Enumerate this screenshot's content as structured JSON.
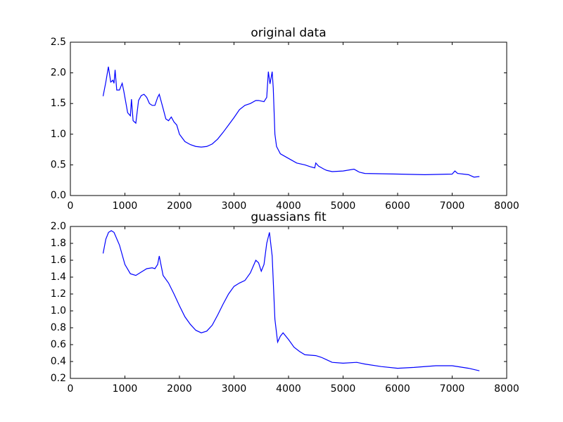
{
  "chart_data": [
    {
      "type": "line",
      "title": "original data",
      "x": [
        600,
        650,
        697,
        740,
        780,
        800,
        820,
        850,
        900,
        950,
        980,
        1050,
        1100,
        1120,
        1150,
        1200,
        1250,
        1300,
        1350,
        1400,
        1450,
        1500,
        1550,
        1600,
        1630,
        1700,
        1750,
        1800,
        1850,
        1900,
        1950,
        2000,
        2100,
        2200,
        2300,
        2400,
        2500,
        2600,
        2700,
        2800,
        2900,
        3000,
        3100,
        3200,
        3300,
        3400,
        3450,
        3550,
        3600,
        3630,
        3660,
        3700,
        3720,
        3750,
        3780,
        3850,
        3950,
        4050,
        4150,
        4300,
        4400,
        4480,
        4500,
        4550,
        4650,
        4700,
        4800,
        5000,
        5200,
        5300,
        5400,
        6000,
        6500,
        7000,
        7050,
        7100,
        7300,
        7400,
        7500
      ],
      "series": [
        {
          "color": "#0000ff",
          "values": [
            1.62,
            1.85,
            2.1,
            1.85,
            1.88,
            1.83,
            2.05,
            1.72,
            1.72,
            1.83,
            1.7,
            1.35,
            1.3,
            1.57,
            1.22,
            1.18,
            1.55,
            1.63,
            1.65,
            1.6,
            1.5,
            1.47,
            1.47,
            1.6,
            1.65,
            1.42,
            1.25,
            1.22,
            1.28,
            1.2,
            1.15,
            1.0,
            0.88,
            0.83,
            0.8,
            0.79,
            0.8,
            0.84,
            0.92,
            1.03,
            1.15,
            1.27,
            1.4,
            1.47,
            1.5,
            1.55,
            1.55,
            1.53,
            1.6,
            2.02,
            1.82,
            2.02,
            1.75,
            1.0,
            0.8,
            0.68,
            0.63,
            0.58,
            0.53,
            0.5,
            0.47,
            0.45,
            0.53,
            0.48,
            0.43,
            0.41,
            0.39,
            0.4,
            0.43,
            0.38,
            0.36,
            0.35,
            0.34,
            0.35,
            0.4,
            0.36,
            0.34,
            0.3,
            0.31
          ]
        }
      ],
      "xlim": [
        0,
        8000
      ],
      "xticks": [
        0,
        1000,
        2000,
        3000,
        4000,
        5000,
        6000,
        7000,
        8000
      ],
      "ylim": [
        0,
        2.5
      ],
      "yticks": [
        {
          "value": 0,
          "label": "0.0"
        },
        0.5,
        {
          "value": 1,
          "label": "1.0"
        },
        1.5,
        {
          "value": 2,
          "label": "2.0"
        },
        2.5
      ]
    },
    {
      "type": "line",
      "title": "guassians fit",
      "x": [
        600,
        650,
        700,
        750,
        800,
        900,
        1000,
        1100,
        1200,
        1300,
        1400,
        1500,
        1550,
        1600,
        1630,
        1660,
        1700,
        1800,
        1900,
        2000,
        2100,
        2200,
        2300,
        2400,
        2500,
        2600,
        2700,
        2800,
        2900,
        3000,
        3100,
        3200,
        3300,
        3400,
        3450,
        3500,
        3550,
        3600,
        3650,
        3700,
        3750,
        3800,
        3850,
        3900,
        4000,
        4100,
        4200,
        4300,
        4500,
        4600,
        4700,
        4800,
        5000,
        5250,
        5400,
        5700,
        6000,
        6300,
        6700,
        7000,
        7300,
        7500
      ],
      "series": [
        {
          "color": "#0000ff",
          "values": [
            1.68,
            1.85,
            1.93,
            1.95,
            1.93,
            1.78,
            1.55,
            1.44,
            1.42,
            1.46,
            1.5,
            1.51,
            1.5,
            1.55,
            1.65,
            1.55,
            1.42,
            1.33,
            1.2,
            1.06,
            0.93,
            0.84,
            0.77,
            0.74,
            0.76,
            0.83,
            0.95,
            1.08,
            1.2,
            1.29,
            1.33,
            1.36,
            1.45,
            1.6,
            1.57,
            1.47,
            1.55,
            1.8,
            1.93,
            1.65,
            0.9,
            0.63,
            0.7,
            0.74,
            0.66,
            0.57,
            0.52,
            0.48,
            0.47,
            0.45,
            0.42,
            0.39,
            0.38,
            0.39,
            0.37,
            0.34,
            0.32,
            0.33,
            0.35,
            0.35,
            0.32,
            0.29
          ]
        }
      ],
      "xlim": [
        0,
        8000
      ],
      "xticks": [
        0,
        1000,
        2000,
        3000,
        4000,
        5000,
        6000,
        7000,
        8000
      ],
      "ylim": [
        0.2,
        2.0
      ],
      "yticks": [
        0.2,
        0.4,
        0.6,
        0.8,
        {
          "value": 1,
          "label": "1.0"
        },
        1.2,
        1.4,
        1.6,
        1.8,
        {
          "value": 2,
          "label": "2.0"
        }
      ]
    }
  ]
}
